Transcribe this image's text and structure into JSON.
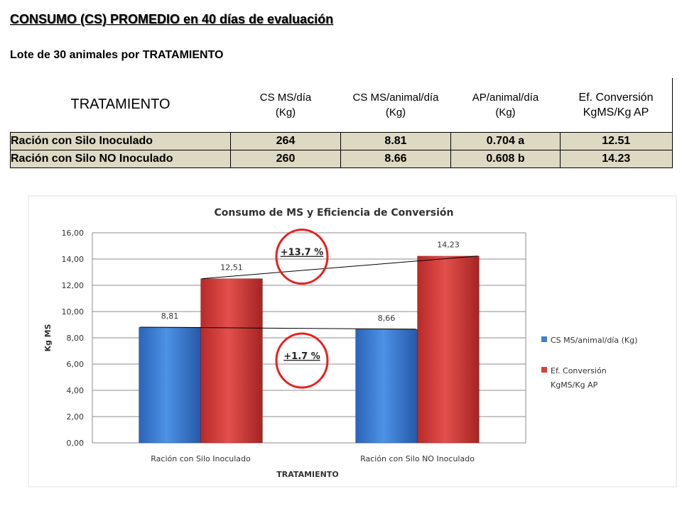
{
  "header": {
    "title": "CONSUMO (CS)  PROMEDIO en 40 días de evaluación",
    "subtitle": "Lote de 30 animales por TRATAMIENTO"
  },
  "table": {
    "columns": [
      {
        "line1": "TRATAMIENTO",
        "line2": ""
      },
      {
        "line1": "CS MS/día",
        "line2": "(Kg)"
      },
      {
        "line1": "CS MS/animal/día",
        "line2": "(Kg)"
      },
      {
        "line1": "AP/animal/día",
        "line2": "(Kg)"
      },
      {
        "line1": "Ef. Conversión",
        "line2": "KgMS/Kg AP"
      }
    ],
    "rows": [
      [
        "Ración con Silo Inoculado",
        "264",
        "8.81",
        "0.704 a",
        "12.51"
      ],
      [
        "Ración con Silo NO Inoculado",
        "260",
        "8.66",
        "0.608 b",
        "14.23"
      ]
    ]
  },
  "chart_data": {
    "type": "bar",
    "title": "Consumo de MS y Eficiencia de Conversión",
    "xlabel": "TRATAMIENTO",
    "ylabel": "Kg MS",
    "ylim": [
      0,
      16
    ],
    "yticks": [
      "0,00",
      "2,00",
      "4,00",
      "6,00",
      "8,00",
      "10,00",
      "12,00",
      "14,00",
      "16,00"
    ],
    "grid": true,
    "legend_position": "right",
    "categories": [
      "Ración con Silo Inoculado",
      "Ración con Silo NO Inoculado"
    ],
    "series": [
      {
        "name": "CS MS/animal/día (Kg)",
        "values": [
          8.81,
          8.66
        ],
        "labels": [
          "8,81",
          "8,66"
        ],
        "color": "#3d7fd6"
      },
      {
        "name": "Ef. Conversión KgMS/Kg AP",
        "values": [
          12.51,
          14.23
        ],
        "labels": [
          "12,51",
          "14,23"
        ],
        "color": "#d8403e"
      }
    ],
    "annotations": [
      {
        "text": "+13.7 %",
        "series": 1
      },
      {
        "text": "+1.7 %",
        "series": 0
      }
    ],
    "annotation_color": "#e8201e"
  }
}
